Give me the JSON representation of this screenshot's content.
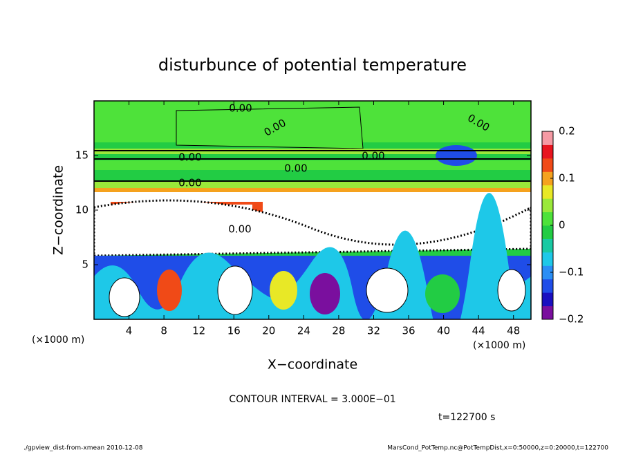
{
  "chart_data": {
    "type": "contour",
    "title": "disturbunce of potential temperature",
    "x_label": "X−coordinate",
    "y_label": "Z−coordinate",
    "x_unit": "(×1000 m)",
    "y_unit": "(×1000 m)",
    "xlim": [
      0,
      50
    ],
    "xticks": [
      4,
      8,
      12,
      16,
      20,
      24,
      28,
      32,
      36,
      40,
      44,
      48
    ],
    "ylim": [
      0,
      20
    ],
    "yticks": [
      5,
      10,
      15
    ],
    "clim": [
      -0.2,
      0.2
    ],
    "cticks": [
      {
        "value": -0.2,
        "label": "−0.2"
      },
      {
        "value": -0.1,
        "label": "−0.1"
      },
      0,
      0.1,
      0.2
    ],
    "colormap": [
      "#7a0f9e",
      "#1a0fc0",
      "#1f4de8",
      "#2a8ef5",
      "#1ec8e8",
      "#19c9a3",
      "#22cc44",
      "#4ee23a",
      "#9ae83a",
      "#e8e826",
      "#f5a21e",
      "#f04a17",
      "#e8151f",
      "#f59aa4"
    ],
    "annotations": [
      "0.00",
      "0.00",
      "0.00",
      "0.00",
      "0.00",
      "0.00",
      "0.00",
      "0.00"
    ],
    "contour_interval": "CONTOUR INTERVAL = 3.000E−01",
    "time": "t=122700 s",
    "footer_left": "./gpview_dist-from-xmean  2010-12-08",
    "footer_right": "MarsCond_PotTemp.nc@PotTempDist,x=0:50000,z=0:20000,t=122700"
  }
}
